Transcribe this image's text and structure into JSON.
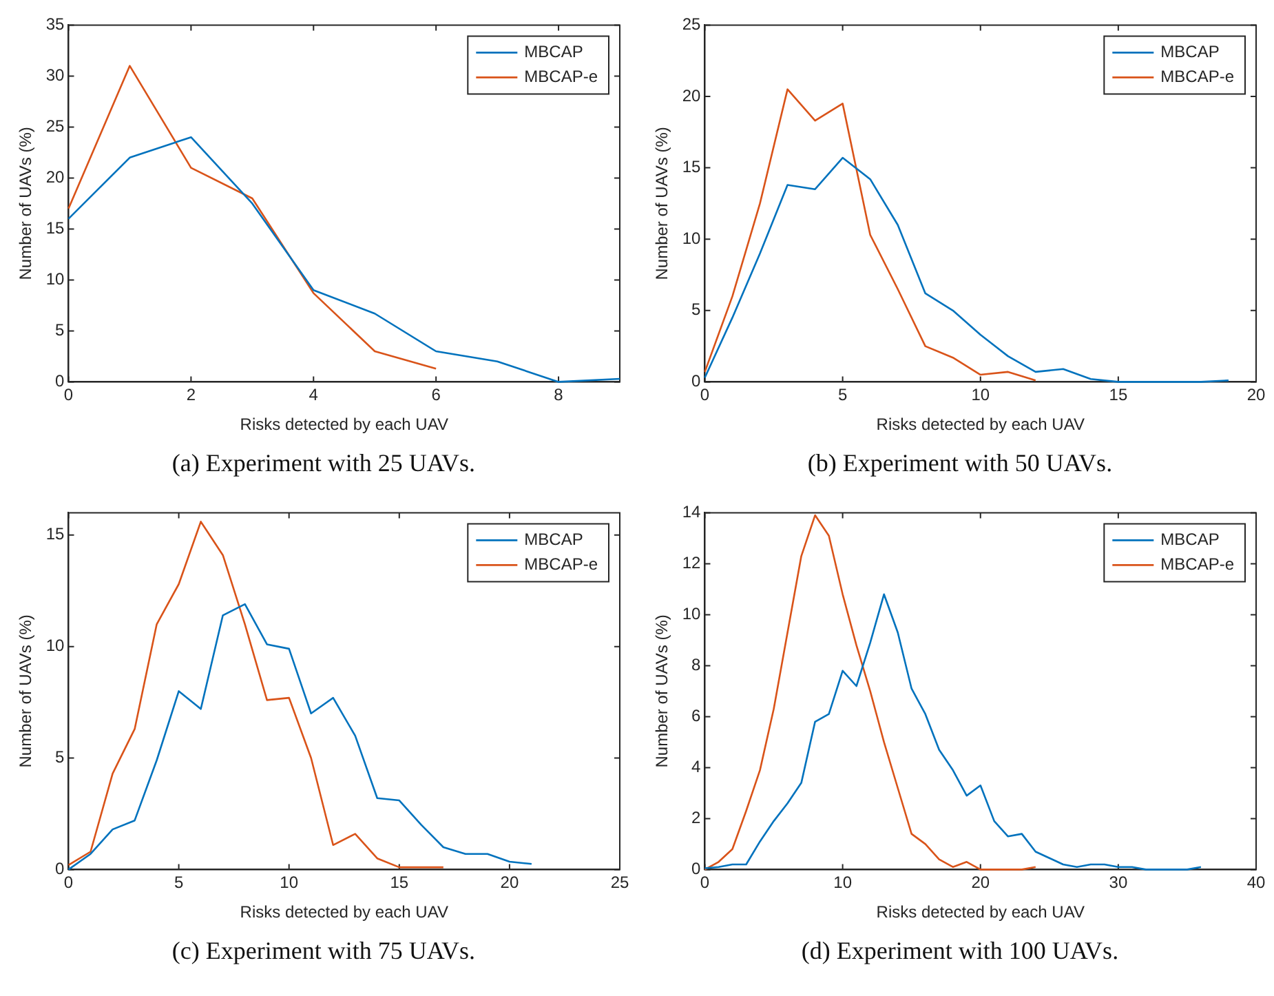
{
  "chart_data": [
    {
      "type": "line",
      "xlabel": "Risks detected by each UAV",
      "ylabel": "Number of UAVs (%)",
      "annotations": [
        "(a) Experiment with 25 UAVs."
      ],
      "xlim": [
        0,
        9
      ],
      "xticks": [
        0,
        2,
        4,
        6,
        8
      ],
      "ylim": [
        0,
        35
      ],
      "yticks": [
        0,
        5,
        10,
        15,
        20,
        25,
        30,
        35
      ],
      "grid": false,
      "legend": "top right",
      "marker": "none",
      "line_style": "solid",
      "series": [
        {
          "name": "MBCAP",
          "color": "#0072bd",
          "x": [
            0,
            1,
            2,
            3,
            4,
            5,
            6,
            7,
            8,
            9
          ],
          "values": [
            16,
            22,
            24,
            17.5,
            9,
            6.7,
            3,
            2,
            0,
            0.3
          ]
        },
        {
          "name": "MBCAP-e",
          "color": "#d95319",
          "x": [
            0,
            1,
            2,
            3,
            4,
            5,
            6
          ],
          "values": [
            17,
            31,
            21,
            18,
            8.7,
            3,
            1.3
          ]
        }
      ]
    },
    {
      "type": "line",
      "xlabel": "Risks detected by each UAV",
      "ylabel": "Number of UAVs (%)",
      "annotations": [
        "(b) Experiment with 50 UAVs."
      ],
      "xlim": [
        0,
        20
      ],
      "xticks": [
        0,
        5,
        10,
        15,
        20
      ],
      "ylim": [
        0,
        25
      ],
      "yticks": [
        0,
        5,
        10,
        15,
        20,
        25
      ],
      "grid": false,
      "legend": "top right",
      "marker": "none",
      "line_style": "solid",
      "series": [
        {
          "name": "MBCAP",
          "color": "#0072bd",
          "x": [
            0,
            1,
            2,
            3,
            4,
            5,
            6,
            7,
            8,
            9,
            10,
            11,
            12,
            13,
            14,
            15,
            16,
            17,
            18,
            19
          ],
          "values": [
            0.3,
            4.5,
            9,
            13.8,
            13.5,
            15.7,
            14.2,
            11,
            6.2,
            5,
            3.3,
            1.8,
            0.7,
            0.9,
            0.2,
            0,
            0,
            0,
            0,
            0.1
          ]
        },
        {
          "name": "MBCAP-e",
          "color": "#d95319",
          "x": [
            0,
            1,
            2,
            3,
            4,
            5,
            6,
            7,
            8,
            9,
            10,
            11,
            12
          ],
          "values": [
            0.7,
            6,
            12.5,
            20.5,
            18.3,
            19.5,
            10.3,
            6.5,
            2.5,
            1.7,
            0.5,
            0.7,
            0.1
          ]
        }
      ]
    },
    {
      "type": "line",
      "xlabel": "Risks detected by each UAV",
      "ylabel": "Number of UAVs (%)",
      "annotations": [
        "(c) Experiment with 75 UAVs."
      ],
      "xlim": [
        0,
        25
      ],
      "xticks": [
        0,
        5,
        10,
        15,
        20,
        25
      ],
      "ylim": [
        0,
        16
      ],
      "yticks": [
        0,
        5,
        10,
        15
      ],
      "grid": false,
      "legend": "top right",
      "marker": "none",
      "line_style": "solid",
      "series": [
        {
          "name": "MBCAP",
          "color": "#0072bd",
          "x": [
            0,
            1,
            2,
            3,
            4,
            5,
            6,
            7,
            8,
            9,
            10,
            11,
            12,
            13,
            14,
            15,
            16,
            17,
            18,
            19,
            20,
            21
          ],
          "values": [
            0,
            0.7,
            1.8,
            2.2,
            4.9,
            8,
            7.2,
            11.4,
            11.9,
            10.1,
            9.9,
            7,
            7.7,
            6,
            3.2,
            3.1,
            2,
            1,
            0.7,
            0.7,
            0.35,
            0.25
          ]
        },
        {
          "name": "MBCAP-e",
          "color": "#d95319",
          "x": [
            0,
            1,
            2,
            3,
            4,
            5,
            6,
            7,
            8,
            9,
            10,
            11,
            12,
            13,
            14,
            15,
            16,
            17
          ],
          "values": [
            0.2,
            0.8,
            4.3,
            6.3,
            11,
            12.8,
            15.6,
            14.1,
            11,
            7.6,
            7.7,
            5,
            1.1,
            1.6,
            0.5,
            0.1,
            0.1,
            0.1
          ]
        }
      ]
    },
    {
      "type": "line",
      "xlabel": "Risks detected by each UAV",
      "ylabel": "Number of UAVs (%)",
      "annotations": [
        "(d) Experiment with 100 UAVs."
      ],
      "xlim": [
        0,
        40
      ],
      "xticks": [
        0,
        10,
        20,
        30,
        40
      ],
      "ylim": [
        0,
        14
      ],
      "yticks": [
        0,
        2,
        4,
        6,
        8,
        10,
        12,
        14
      ],
      "grid": false,
      "legend": "top right",
      "marker": "none",
      "line_style": "solid",
      "series": [
        {
          "name": "MBCAP",
          "color": "#0072bd",
          "x": [
            0,
            1,
            2,
            3,
            4,
            5,
            6,
            7,
            8,
            9,
            10,
            11,
            12,
            13,
            14,
            15,
            16,
            17,
            18,
            19,
            20,
            21,
            22,
            23,
            24,
            25,
            26,
            27,
            28,
            29,
            30,
            31,
            32,
            33,
            34,
            35,
            36
          ],
          "values": [
            0.05,
            0.1,
            0.2,
            0.2,
            1.1,
            1.9,
            2.6,
            3.4,
            5.8,
            6.1,
            7.8,
            7.2,
            8.9,
            10.8,
            9.3,
            7.1,
            6.1,
            4.7,
            3.9,
            2.9,
            3.3,
            1.9,
            1.3,
            1.4,
            0.7,
            0.45,
            0.2,
            0.1,
            0.2,
            0.2,
            0.1,
            0.1,
            0,
            0,
            0,
            0,
            0.1
          ]
        },
        {
          "name": "MBCAP-e",
          "color": "#d95319",
          "x": [
            0,
            1,
            2,
            3,
            4,
            5,
            6,
            7,
            8,
            9,
            10,
            11,
            12,
            13,
            14,
            15,
            16,
            17,
            18,
            19,
            20,
            21,
            22,
            23,
            24
          ],
          "values": [
            0,
            0.3,
            0.8,
            2.3,
            3.9,
            6.3,
            9.3,
            12.3,
            13.9,
            13.1,
            10.8,
            8.8,
            7,
            5,
            3.2,
            1.4,
            1,
            0.4,
            0.1,
            0.3,
            0,
            0,
            0,
            0,
            0.1
          ]
        }
      ]
    }
  ]
}
